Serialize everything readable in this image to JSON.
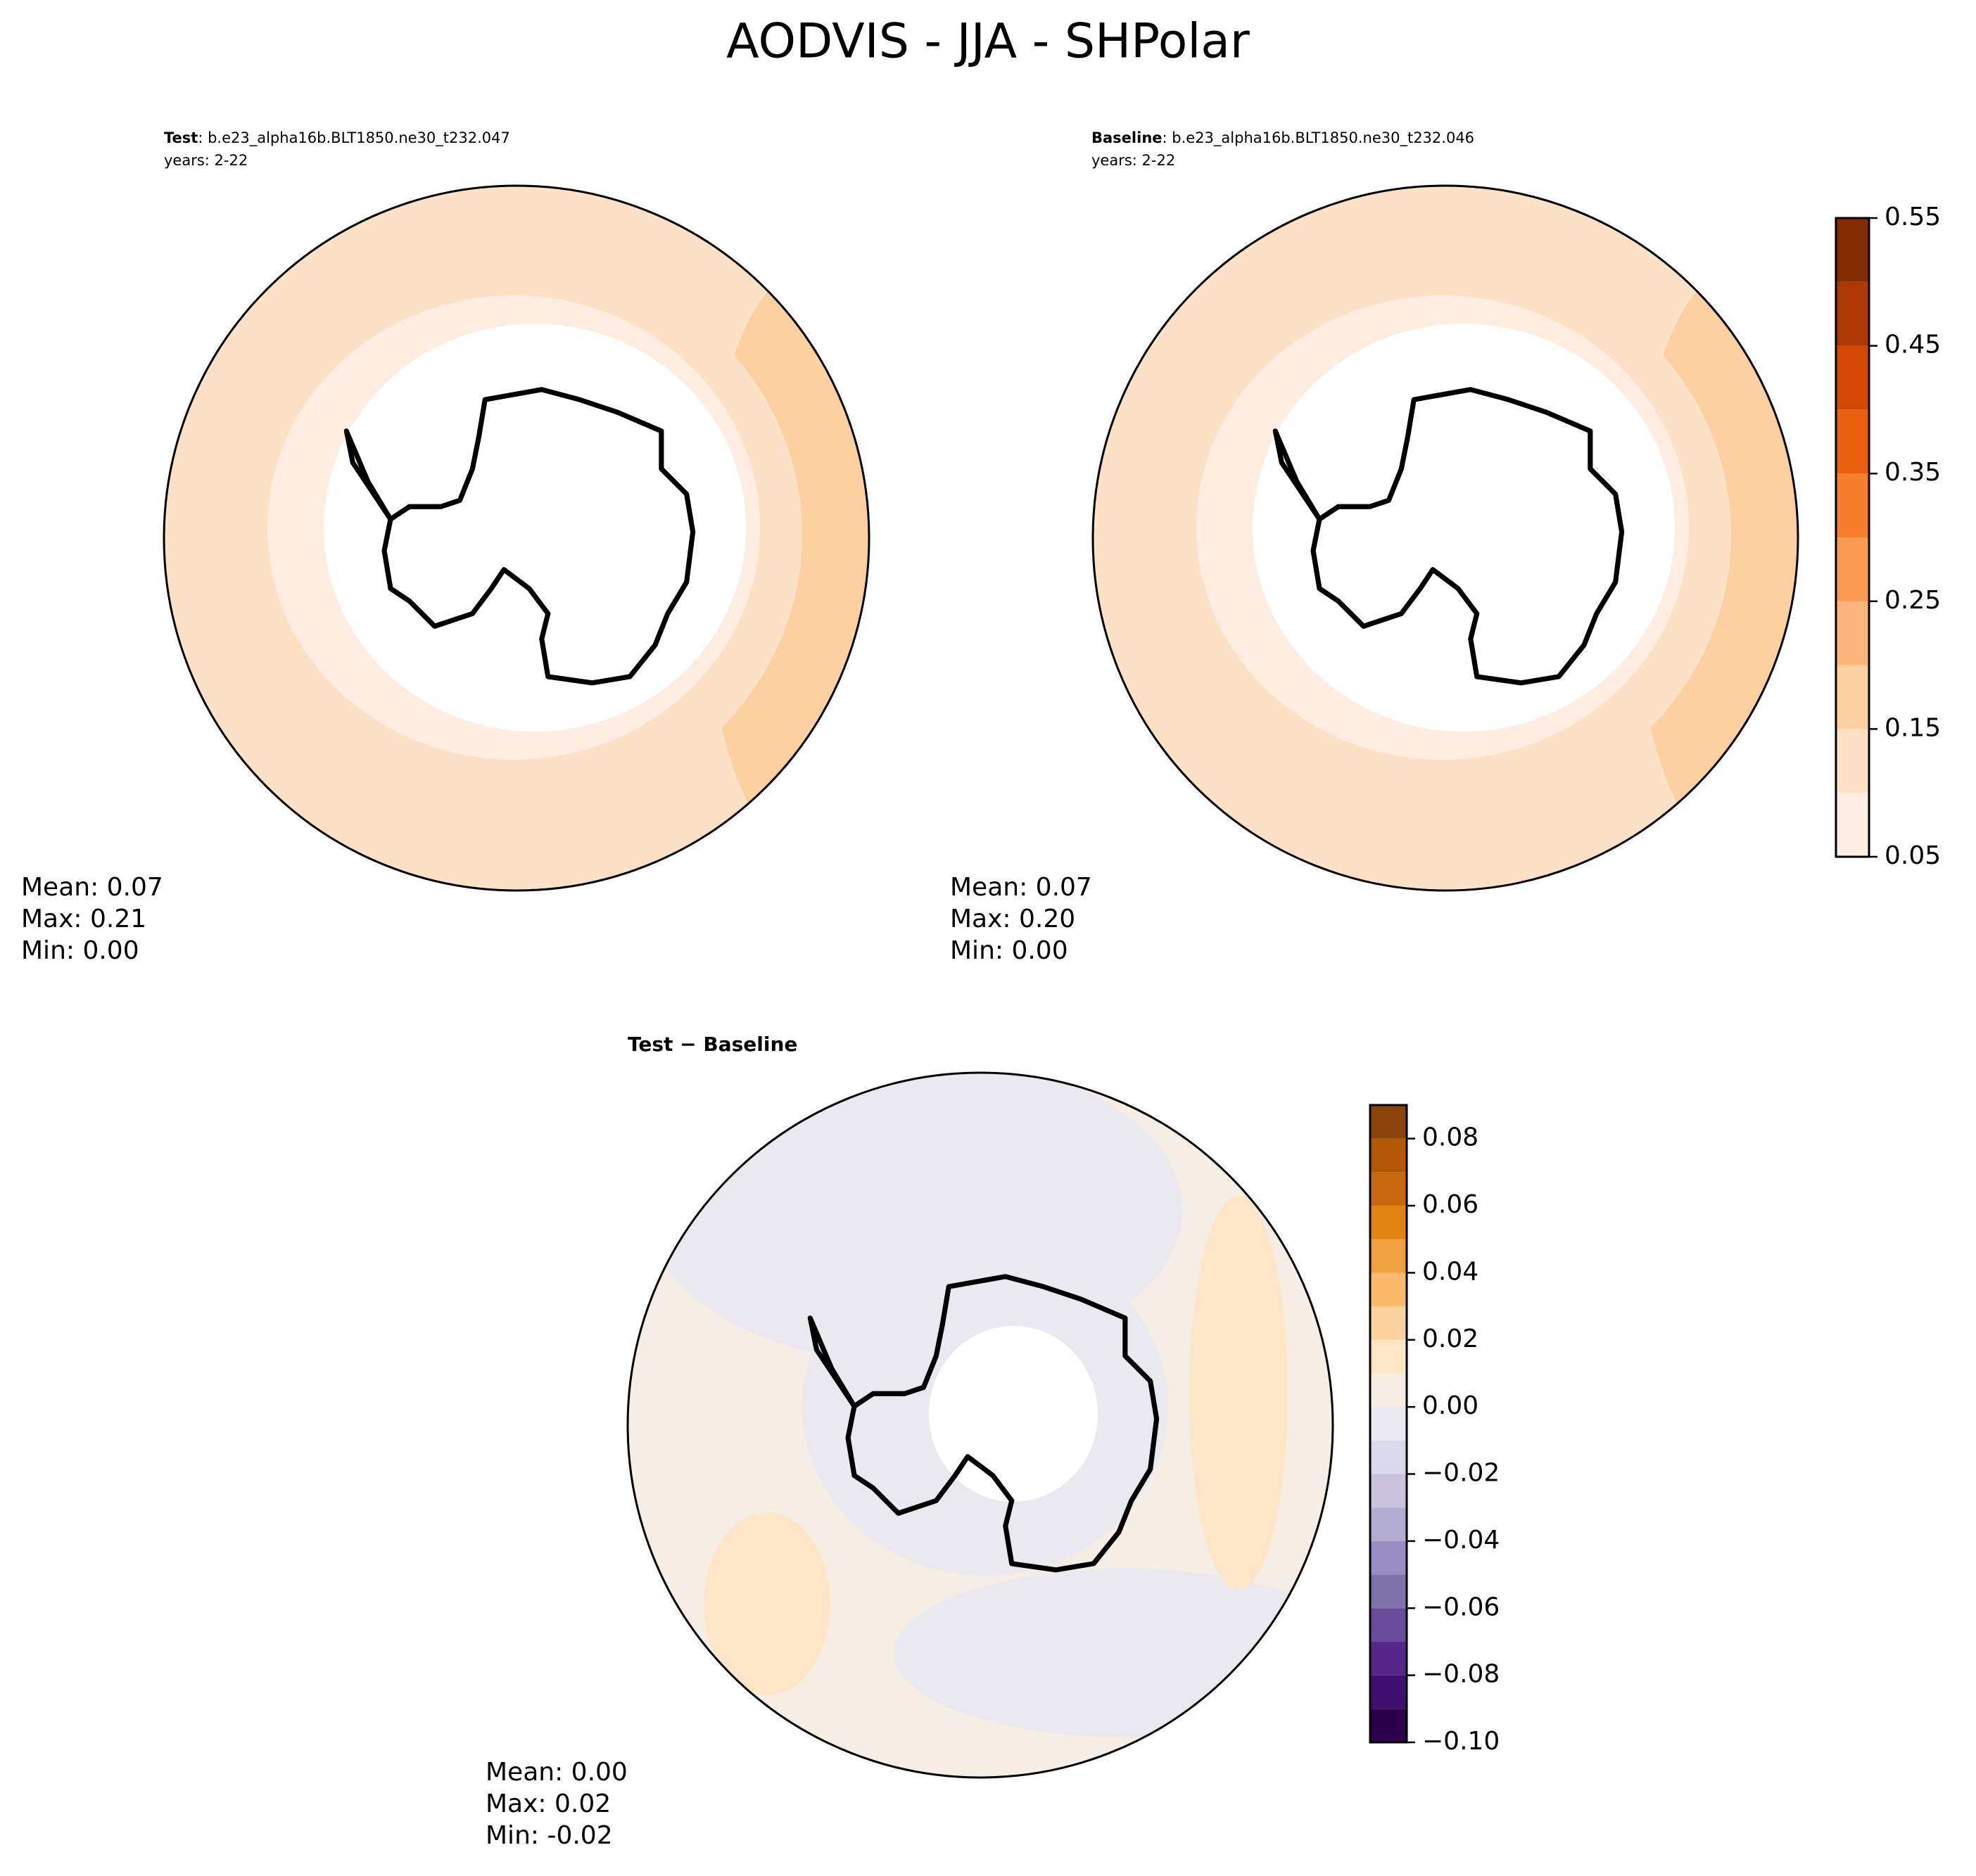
{
  "title": "AODVIS - JJA - SHPolar",
  "panels": [
    {
      "label": "Test",
      "case": ": b.e23_alpha16b.BLT1850.ne30_t232.047",
      "years": "years: 2-22",
      "stats": [
        "Mean:  0.07",
        "Max:  0.21",
        "Min:  0.00"
      ]
    },
    {
      "label": "Baseline",
      "case": ": b.e23_alpha16b.BLT1850.ne30_t232.046",
      "years": "years: 2-22",
      "stats": [
        "Mean:  0.07",
        "Max:  0.20",
        "Min:  0.00"
      ]
    },
    {
      "label": "Test − Baseline",
      "stats": [
        "Mean:  0.00",
        "Max:  0.02",
        "Min: -0.02"
      ]
    }
  ],
  "colorbars": [
    {
      "lim": [
        0.05,
        0.55
      ],
      "levels": [
        0.05,
        0.1,
        0.15,
        0.2,
        0.25,
        0.3,
        0.35,
        0.4,
        0.45,
        0.5,
        0.55
      ],
      "colors": [
        "#feede0",
        "#fde1c6",
        "#fdd0a2",
        "#fdb57b",
        "#fd9a52",
        "#f67e2c",
        "#e9600f",
        "#d44a04",
        "#ad3803",
        "#842c04"
      ],
      "ticks": [
        0.05,
        0.15,
        0.25,
        0.35,
        0.45,
        0.55
      ]
    },
    {
      "lim": [
        -0.1,
        0.09
      ],
      "levels": [
        -0.1,
        -0.09,
        -0.08,
        -0.07,
        -0.06,
        -0.05,
        -0.04,
        -0.03,
        -0.02,
        -0.01,
        0,
        0.01,
        0.02,
        0.03,
        0.04,
        0.05,
        0.06,
        0.07,
        0.08,
        0.09
      ],
      "colors": [
        "#2d004b",
        "#3f0f6f",
        "#542788",
        "#6a4c9c",
        "#8073ac",
        "#998ec3",
        "#b2abd2",
        "#c9c3df",
        "#d8daeb",
        "#e9e9ef",
        "#f6eee4",
        "#fde6c8",
        "#fdd4a0",
        "#fcbb6c",
        "#f0a040",
        "#e08214",
        "#c96710",
        "#b35806",
        "#8a4308"
      ],
      "ticks": [
        {
          "value": -0.1,
          "label": "−0.10"
        },
        {
          "value": -0.08,
          "label": "−0.08"
        },
        {
          "value": -0.06,
          "label": "−0.06"
        },
        {
          "value": -0.04,
          "label": "−0.04"
        },
        {
          "value": -0.02,
          "label": "−0.02"
        },
        {
          "value": 0,
          "label": "0.00"
        },
        0.02,
        0.04,
        0.06,
        0.08
      ]
    }
  ]
}
